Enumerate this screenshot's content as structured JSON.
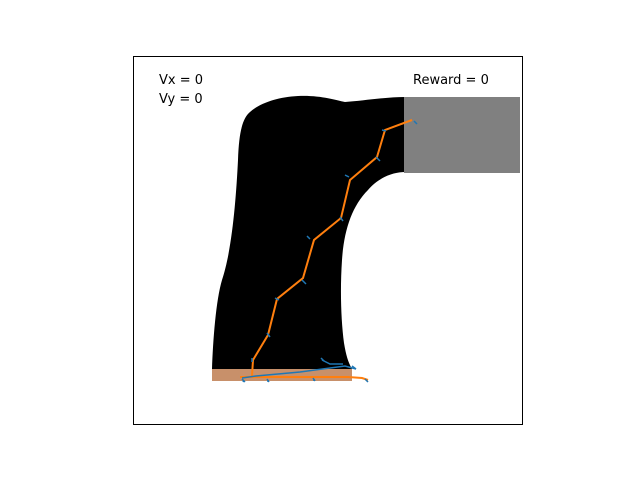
{
  "hud": {
    "vx_text": "Vx = 0",
    "vy_text": "Vy = 0",
    "reward_text": "Reward = 0"
  },
  "colors": {
    "track": "#000000",
    "goal": "#808080",
    "start_pad": "#c8906a",
    "agent_orange": "#ff7f0e",
    "sensor_blue": "#1f77b4",
    "frame": "#000000"
  }
}
